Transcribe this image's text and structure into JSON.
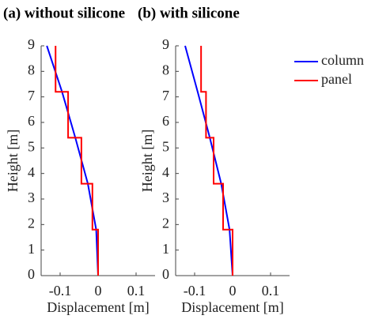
{
  "chart_data": [
    {
      "type": "line",
      "title": "(a) without silicone",
      "xlabel": "Displacement [m]",
      "ylabel": "Height [m]",
      "xlim": [
        -0.15,
        0.15
      ],
      "xticks": [
        -0.1,
        0,
        0.1
      ],
      "ylim": [
        0,
        9
      ],
      "yticks": [
        0,
        1,
        2,
        3,
        4,
        5,
        6,
        7,
        8,
        9
      ],
      "legend": "outside-right",
      "series": [
        {
          "name": "column",
          "color": "#0000ff",
          "x": [
            0,
            -0.005,
            -0.027,
            -0.06,
            -0.095,
            -0.135
          ],
          "y": [
            0,
            1.8,
            3.6,
            5.4,
            7.2,
            9
          ]
        },
        {
          "name": "panel",
          "color": "#ff0000",
          "x": [
            0,
            0,
            -0.015,
            -0.015,
            -0.044,
            -0.044,
            -0.079,
            -0.079,
            -0.112,
            -0.112
          ],
          "y": [
            0,
            1.8,
            1.8,
            3.6,
            3.6,
            5.4,
            5.4,
            7.2,
            7.2,
            9
          ]
        }
      ]
    },
    {
      "type": "line",
      "title": "(b) with silicone",
      "xlabel": "Displacement [m]",
      "ylabel": "Height [m]",
      "xlim": [
        -0.15,
        0.15
      ],
      "xticks": [
        -0.1,
        0,
        0.1
      ],
      "ylim": [
        0,
        9
      ],
      "yticks": [
        0,
        1,
        2,
        3,
        4,
        5,
        6,
        7,
        8,
        9
      ],
      "series": [
        {
          "color": "#0000ff",
          "x": [
            0,
            -0.008,
            -0.03,
            -0.06,
            -0.092,
            -0.125
          ],
          "y": [
            0,
            1.8,
            3.6,
            5.4,
            7.2,
            9
          ]
        },
        {
          "color": "#ff0000",
          "x": [
            0,
            0,
            -0.025,
            -0.025,
            -0.05,
            -0.05,
            -0.07,
            -0.07,
            -0.083,
            -0.083
          ],
          "y": [
            0,
            1.8,
            1.8,
            3.6,
            3.6,
            5.4,
            5.4,
            7.2,
            7.2,
            9
          ]
        }
      ]
    }
  ]
}
